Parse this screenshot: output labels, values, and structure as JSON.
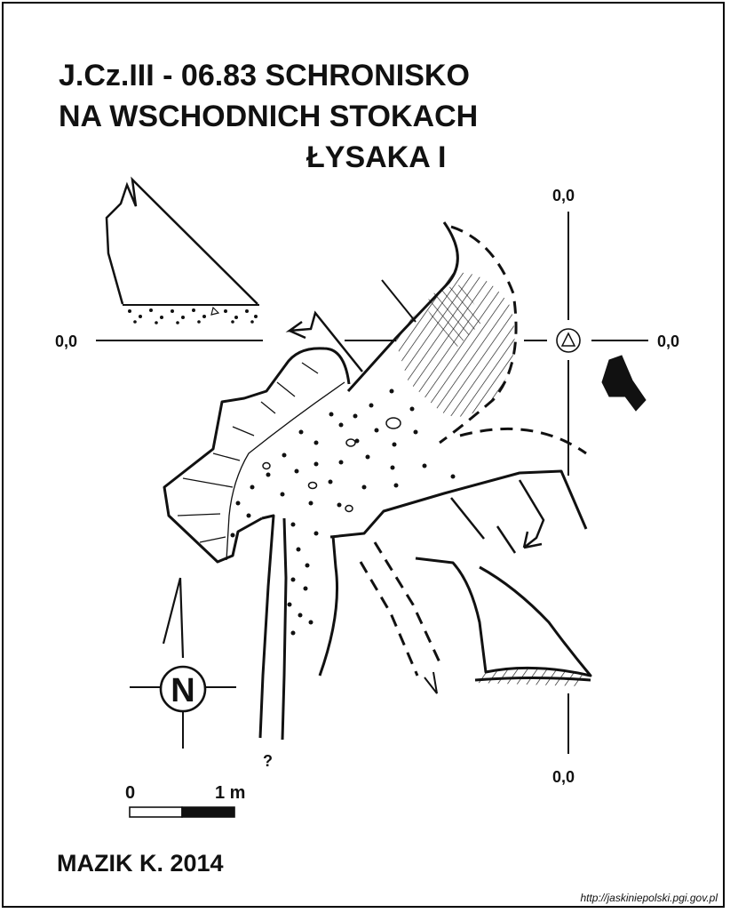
{
  "title": {
    "line1": "J.Cz.III - 06.83 SCHRONISKO",
    "line2": "NA WSCHODNICH STOKACH",
    "line3": "ŁYSAKA I"
  },
  "axes": {
    "top": "0,0",
    "left": "0,0",
    "right": "0,0",
    "bottom": "0,0",
    "datum_icon": "triangle-datum-icon"
  },
  "north_label": "N",
  "unknown_mark": "?",
  "scale": {
    "start": "0",
    "end": "1 m"
  },
  "author": "MAZIK K. 2014",
  "source_url": "http://jaskiniepolski.pgi.gov.pl",
  "colors": {
    "ink": "#111111",
    "background": "#ffffff"
  }
}
